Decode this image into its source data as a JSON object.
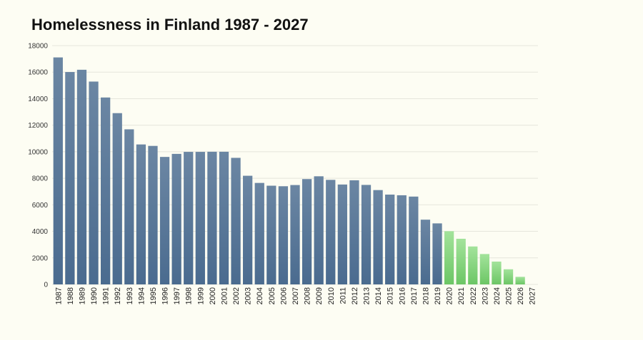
{
  "title": "Homelessness in Finland 1987 - 2027",
  "colors": {
    "historical_top": "#6b86a3",
    "historical_bottom": "#4a6b8f",
    "projected_top": "#a3e39b",
    "projected_bottom": "#6cc665",
    "grid": "#e6e6dc",
    "background": "#fdfdf3"
  },
  "chart_data": {
    "type": "bar",
    "title": "Homelessness in Finland 1987 - 2027",
    "xlabel": "",
    "ylabel": "",
    "ylim": [
      0,
      18000
    ],
    "yticks": [
      0,
      2000,
      4000,
      6000,
      8000,
      10000,
      12000,
      14000,
      16000,
      18000
    ],
    "grid": true,
    "categories": [
      "1987",
      "1988",
      "1989",
      "1990",
      "1991",
      "1992",
      "1993",
      "1994",
      "1995",
      "1996",
      "1997",
      "1998",
      "1999",
      "2000",
      "2001",
      "2002",
      "2003",
      "2004",
      "2005",
      "2006",
      "2007",
      "2008",
      "2009",
      "2010",
      "2011",
      "2012",
      "2013",
      "2014",
      "2015",
      "2016",
      "2017",
      "2018",
      "2019",
      "2020",
      "2021",
      "2022",
      "2023",
      "2024",
      "2025",
      "2026",
      "2027"
    ],
    "values": [
      17110,
      16010,
      16180,
      15290,
      14090,
      12910,
      11690,
      10550,
      10440,
      9610,
      9840,
      9990,
      9990,
      10000,
      10000,
      9540,
      8190,
      7650,
      7440,
      7400,
      7490,
      7940,
      8150,
      7880,
      7530,
      7850,
      7500,
      7110,
      6770,
      6720,
      6620,
      4880,
      4600,
      4010,
      3440,
      2860,
      2290,
      1720,
      1140,
      570,
      0
    ],
    "projected_from": "2020"
  }
}
